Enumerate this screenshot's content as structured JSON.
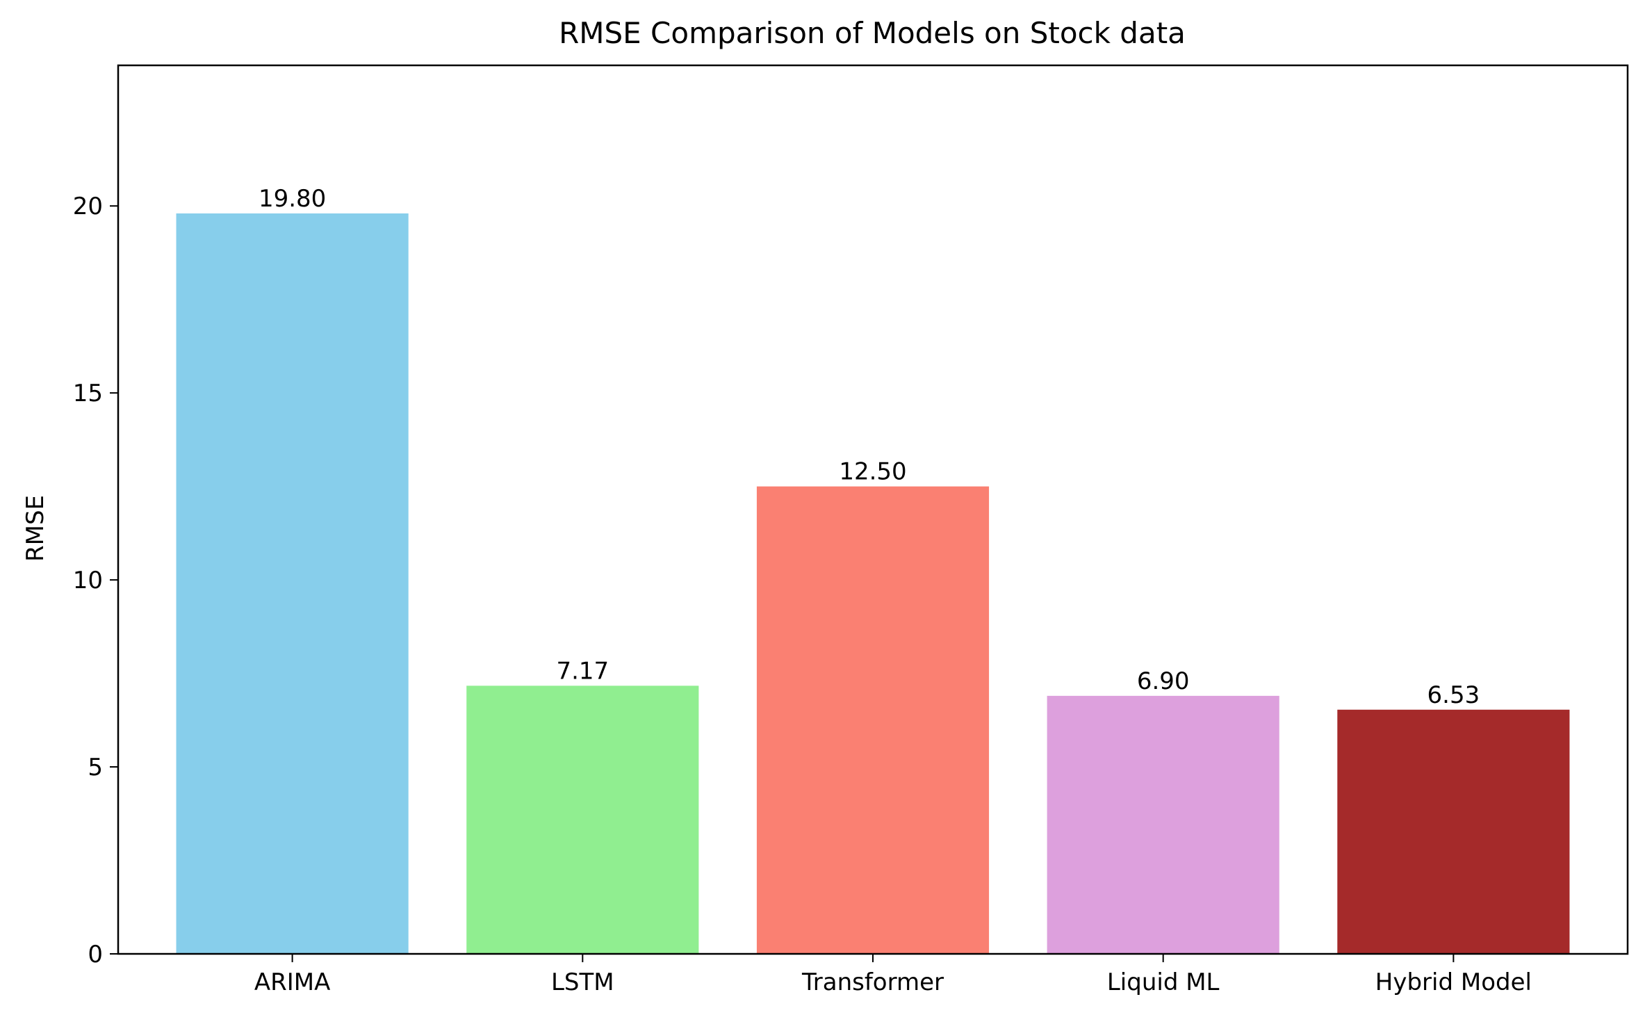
{
  "chart_data": {
    "type": "bar",
    "title": "RMSE Comparison of Models on Stock data",
    "xlabel": "",
    "ylabel": "RMSE",
    "categories": [
      "ARIMA",
      "LSTM",
      "Transformer",
      "Liquid ML",
      "Hybrid Model"
    ],
    "values": [
      19.8,
      7.17,
      12.5,
      6.9,
      6.53
    ],
    "value_labels": [
      "19.80",
      "7.17",
      "12.50",
      "6.90",
      "6.53"
    ],
    "colors": [
      "#87ceeb",
      "#90ee90",
      "#fa8072",
      "#dda0dd",
      "#a52a2a"
    ],
    "ylim": [
      0,
      23.76
    ],
    "yticks": [
      0,
      5,
      10,
      15,
      20
    ],
    "ytick_labels": [
      "0",
      "5",
      "10",
      "15",
      "20"
    ],
    "grid": false,
    "legend": "none"
  }
}
